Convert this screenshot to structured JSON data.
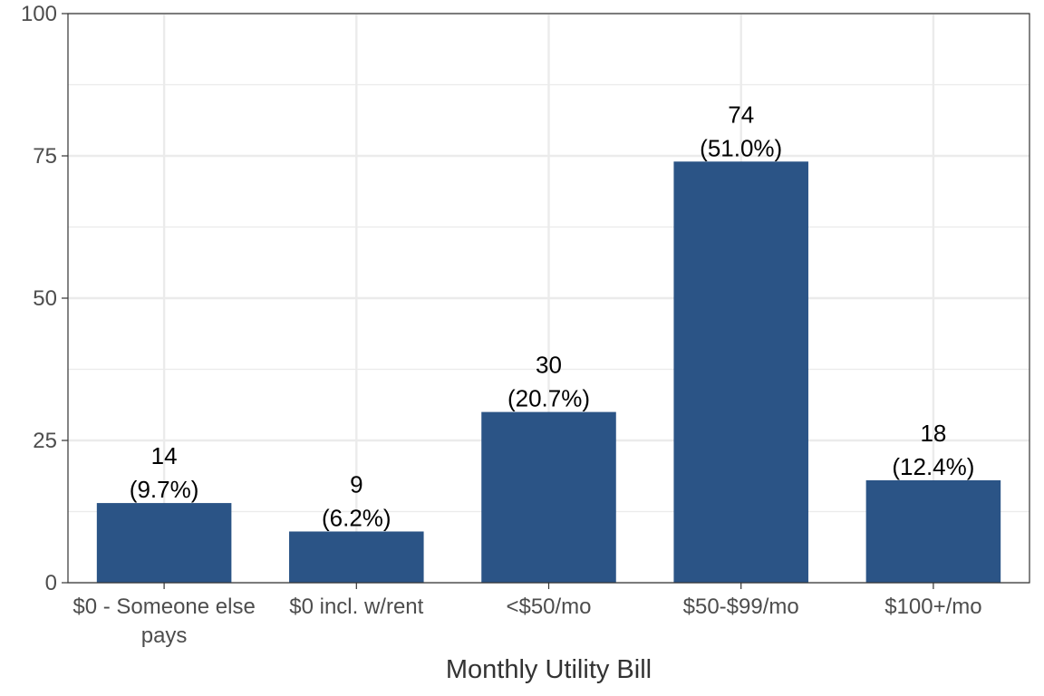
{
  "chart_data": {
    "type": "bar",
    "categories": [
      [
        "$0 - Someone else",
        "pays"
      ],
      [
        "$0 incl. w/rent"
      ],
      [
        "<$50/mo"
      ],
      [
        "$50-$99/mo"
      ],
      [
        "$100+/mo"
      ]
    ],
    "values": [
      14,
      9,
      30,
      74,
      18
    ],
    "data_labels": [
      [
        "14",
        "(9.7%)"
      ],
      [
        "9",
        "(6.2%)"
      ],
      [
        "30",
        "(20.7%)"
      ],
      [
        "74",
        "(51.0%)"
      ],
      [
        "18",
        "(12.4%)"
      ]
    ],
    "xlabel": "Monthly Utility Bill",
    "ylabel": "",
    "ylim": [
      0,
      100
    ],
    "yticks": [
      0,
      25,
      50,
      75,
      100
    ],
    "ytick_labels": [
      "0",
      "25",
      "50",
      "75",
      "100"
    ],
    "grid": true,
    "bar_color": "#2b5486",
    "grid_color": "#ebebeb",
    "panel_border_color": "#333333"
  }
}
